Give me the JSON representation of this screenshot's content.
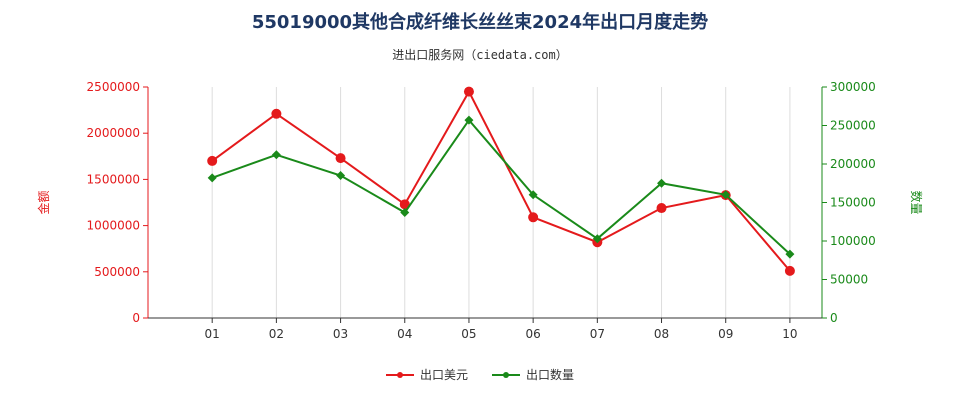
{
  "title": "55019000其他合成纤维长丝丝束2024年出口月度走势",
  "subtitle": "进出口服务网（ciedata.com）",
  "colors": {
    "series1": "#e41a1c",
    "series2": "#1a8a1a",
    "grid": "#dddddd",
    "axis": "#333333"
  },
  "chart_data": {
    "type": "line",
    "categories": [
      "01",
      "02",
      "03",
      "04",
      "05",
      "06",
      "07",
      "08",
      "09",
      "10"
    ],
    "series": [
      {
        "name": "出口美元",
        "axis": "left",
        "values": [
          1700000,
          2210000,
          1730000,
          1230000,
          2450000,
          1090000,
          820000,
          1190000,
          1330000,
          510000
        ]
      },
      {
        "name": "出口数量",
        "axis": "right",
        "values": [
          182000,
          212000,
          185000,
          137000,
          257000,
          160000,
          103000,
          175000,
          160000,
          83000
        ]
      }
    ],
    "ylabel_left": "金额",
    "ylabel_right": "数量",
    "ylim_left": [
      0,
      2500000
    ],
    "ylim_right": [
      0,
      300000
    ],
    "yticks_left": [
      "0",
      "500000",
      "1000000",
      "1500000",
      "2000000",
      "2500000"
    ],
    "yticks_right": [
      "0",
      "50000",
      "100000",
      "150000",
      "200000",
      "250000",
      "300000"
    ],
    "grid": true,
    "legend": "bottom-center"
  }
}
